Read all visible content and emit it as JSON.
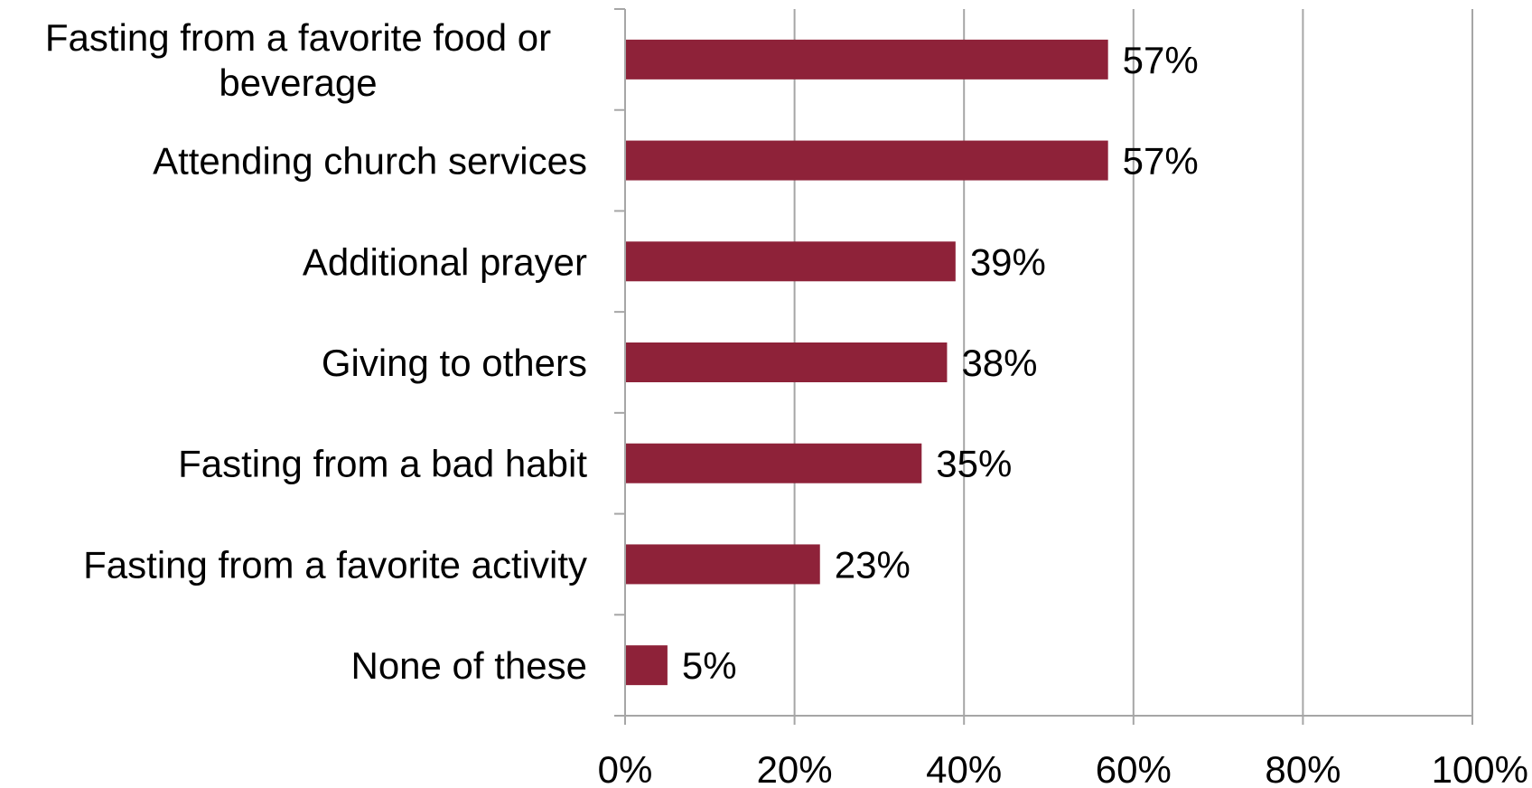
{
  "chart_data": {
    "type": "bar",
    "orientation": "horizontal",
    "categories": [
      "Fasting from a favorite food or beverage",
      "Attending church services",
      "Additional prayer",
      "Giving to others",
      "Fasting from a bad habit",
      "Fasting from a favorite activity",
      "None of these"
    ],
    "category_lines": [
      [
        "Fasting from a favorite food or",
        "beverage"
      ],
      [
        "Attending church services"
      ],
      [
        "Additional prayer"
      ],
      [
        "Giving to others"
      ],
      [
        "Fasting from a bad habit"
      ],
      [
        "Fasting from a favorite activity"
      ],
      [
        "None of these"
      ]
    ],
    "values": [
      57,
      57,
      39,
      38,
      35,
      23,
      5
    ],
    "data_labels": [
      "57%",
      "57%",
      "39%",
      "38%",
      "35%",
      "23%",
      "5%"
    ],
    "xlim": [
      0,
      100
    ],
    "x_ticks": [
      0,
      20,
      40,
      60,
      80,
      100
    ],
    "x_tick_labels": [
      "0%",
      "20%",
      "40%",
      "60%",
      "80%",
      "100%"
    ],
    "grid": "vertical",
    "legend": "none",
    "bar_color": "#8E2239",
    "grid_color": "#A6A6A6"
  }
}
